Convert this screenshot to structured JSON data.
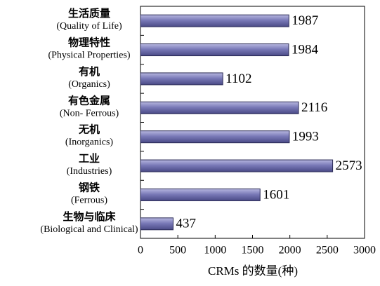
{
  "chart_data": {
    "type": "barh",
    "xlabel": "CRMs 的数量(种)",
    "categories": [
      "生活质量\n(Quality of Life)",
      "物理特性\n(Physical Properties)",
      "有机\n(Organics)",
      "有色金属\n(Non- Ferrous)",
      "无机\n(Inorganics)",
      "工业\n(Industries)",
      "钢铁\n(Ferrous)",
      "生物与临床\n(Biological and Clinical)"
    ],
    "values": [
      1987,
      1984,
      1102,
      2116,
      1993,
      2573,
      1601,
      437
    ],
    "color": "#6f6fae",
    "xlim": [
      0,
      3000
    ],
    "xticks": [
      0,
      500,
      1000,
      1500,
      2000,
      2500,
      3000
    ]
  }
}
